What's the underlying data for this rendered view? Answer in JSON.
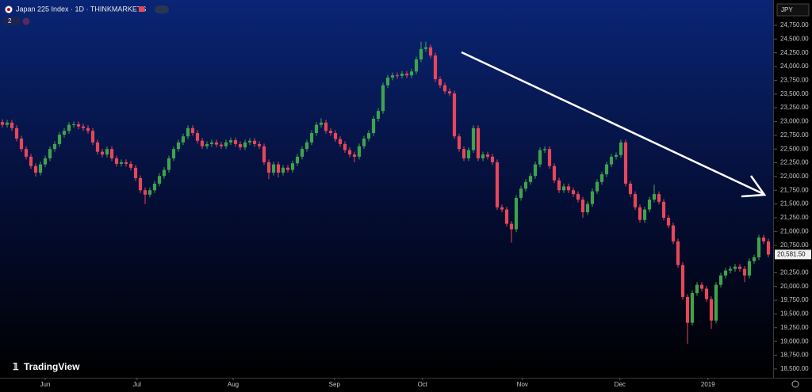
{
  "chart_data": {
    "type": "candlestick",
    "title": "Japan 225 Index · 1D · THINKMARKETS",
    "badge": "2",
    "currency": "JPY",
    "watermark": "TradingView",
    "last_price_label": "20,581.50",
    "up_color": "#3fa34d",
    "down_color": "#e6475a",
    "xlim": [
      -0.5,
      162
    ],
    "xticks": [
      {
        "value": 9,
        "label": "Jun"
      },
      {
        "value": 28.3,
        "label": "Jul"
      },
      {
        "value": 48.5,
        "label": "Aug"
      },
      {
        "value": 69.8,
        "label": "Sep"
      },
      {
        "value": 88.3,
        "label": "Oct"
      },
      {
        "value": 109.3,
        "label": "Nov"
      },
      {
        "value": 129.8,
        "label": "Dec"
      },
      {
        "value": 148.3,
        "label": "2019"
      }
    ],
    "ylim": [
      18340,
      25210
    ],
    "yticks": [
      {
        "value": 24750,
        "label": "24,750.00"
      },
      {
        "value": 24500,
        "label": "24,500.00"
      },
      {
        "value": 24250,
        "label": "24,250.00"
      },
      {
        "value": 24000,
        "label": "24,000.00"
      },
      {
        "value": 23750,
        "label": "23,750.00"
      },
      {
        "value": 23500,
        "label": "23,500.00"
      },
      {
        "value": 23250,
        "label": "23,250.00"
      },
      {
        "value": 23000,
        "label": "23,000.00"
      },
      {
        "value": 22750,
        "label": "22,750.00"
      },
      {
        "value": 22500,
        "label": "22,500.00"
      },
      {
        "value": 22250,
        "label": "22,250.00"
      },
      {
        "value": 22000,
        "label": "22,000.00"
      },
      {
        "value": 21750,
        "label": "21,750.00"
      },
      {
        "value": 21500,
        "label": "21,500.00"
      },
      {
        "value": 21250,
        "label": "21,250.00"
      },
      {
        "value": 21000,
        "label": "21,000.00"
      },
      {
        "value": 20750,
        "label": "20,750.00"
      },
      {
        "value": 20250,
        "label": "20,250.00"
      },
      {
        "value": 20000,
        "label": "20,000.00"
      },
      {
        "value": 19750,
        "label": "19,750.00"
      },
      {
        "value": 19500,
        "label": "19,500.00"
      },
      {
        "value": 19250,
        "label": "19,250.00"
      },
      {
        "value": 19000,
        "label": "19,000.00"
      },
      {
        "value": 18750,
        "label": "18,750.00"
      },
      {
        "value": 18500,
        "label": "18,500.00"
      }
    ],
    "open": [
      22990,
      22940,
      22980,
      22880,
      22690,
      22500,
      22360,
      22190,
      22070,
      22220,
      22330,
      22500,
      22590,
      22760,
      22830,
      22940,
      22950,
      22910,
      22880,
      22830,
      22620,
      22450,
      22400,
      22500,
      22330,
      22230,
      22260,
      22230,
      22160,
      21970,
      21750,
      21670,
      21750,
      21870,
      22010,
      22120,
      22330,
      22500,
      22620,
      22730,
      22880,
      22790,
      22650,
      22550,
      22590,
      22620,
      22580,
      22550,
      22620,
      22660,
      22590,
      22530,
      22620,
      22650,
      22590,
      22550,
      22260,
      22070,
      22220,
      22070,
      22160,
      22120,
      22240,
      22360,
      22500,
      22620,
      22790,
      22940,
      22980,
      22830,
      22790,
      22680,
      22590,
      22480,
      22400,
      22360,
      22550,
      22690,
      22790,
      23050,
      23190,
      23660,
      23800,
      23840,
      23830,
      23870,
      23840,
      23910,
      24130,
      24320,
      24350,
      24200,
      23770,
      23660,
      23550,
      23510,
      22730,
      22500,
      22330,
      22480,
      22880,
      22330,
      22400,
      22360,
      22260,
      21440,
      21400,
      21140,
      21040,
      21610,
      21780,
      21900,
      22010,
      22220,
      22480,
      22500,
      22190,
      21930,
      21750,
      21820,
      21750,
      21680,
      21580,
      21350,
      21500,
      21730,
      21900,
      22040,
      22220,
      22360,
      22390,
      22620,
      21870,
      21680,
      21440,
      21210,
      21400,
      21580,
      21680,
      21540,
      21250,
      21110,
      20820,
      20390,
      19810,
      19340,
      19880,
      20030,
      19960,
      19770,
      19380,
      20030,
      20200,
      20290,
      20320,
      20360,
      20320,
      20200,
      20460,
      20530,
      20890,
      20820
    ],
    "high": [
      23040,
      23030,
      23030,
      22930,
      22740,
      22550,
      22410,
      22240,
      22270,
      22380,
      22550,
      22640,
      22810,
      22880,
      22990,
      23000,
      23000,
      22960,
      22930,
      22880,
      22670,
      22500,
      22550,
      22550,
      22380,
      22310,
      22310,
      22280,
      22210,
      22020,
      21800,
      21800,
      21920,
      22060,
      22170,
      22380,
      22550,
      22670,
      22780,
      22930,
      22930,
      22840,
      22700,
      22640,
      22670,
      22670,
      22630,
      22670,
      22710,
      22710,
      22640,
      22670,
      22700,
      22700,
      22640,
      22600,
      22310,
      22270,
      22270,
      22210,
      22210,
      22290,
      22410,
      22550,
      22670,
      22840,
      22990,
      23060,
      23030,
      22880,
      22840,
      22730,
      22640,
      22530,
      22450,
      22600,
      22740,
      22840,
      23100,
      23240,
      23710,
      23850,
      23890,
      23890,
      23920,
      23920,
      23960,
      24180,
      24450,
      24450,
      24400,
      24250,
      23820,
      23710,
      23600,
      23560,
      22780,
      22550,
      22530,
      22930,
      22930,
      22450,
      22450,
      22410,
      22310,
      21490,
      21450,
      21190,
      21660,
      21830,
      21950,
      22060,
      22270,
      22530,
      22550,
      22550,
      22240,
      21980,
      21870,
      21870,
      21800,
      21730,
      21630,
      21550,
      21780,
      21950,
      22090,
      22270,
      22410,
      22440,
      22670,
      22670,
      21920,
      21730,
      21490,
      21450,
      21630,
      21850,
      21730,
      21590,
      21300,
      21160,
      20870,
      20440,
      19860,
      19930,
      20080,
      20080,
      20010,
      19820,
      20080,
      20250,
      20340,
      20370,
      20410,
      20410,
      20370,
      20510,
      20580,
      20940,
      20940,
      20870
    ],
    "low": [
      22890,
      22890,
      22830,
      22640,
      22450,
      22310,
      22140,
      22000,
      22020,
      22170,
      22280,
      22450,
      22540,
      22710,
      22780,
      22890,
      22860,
      22830,
      22780,
      22570,
      22400,
      22350,
      22350,
      22280,
      22180,
      22180,
      22180,
      22110,
      21920,
      21700,
      21500,
      21620,
      21700,
      21820,
      21960,
      22070,
      22280,
      22450,
      22570,
      22680,
      22740,
      22600,
      22500,
      22500,
      22540,
      22530,
      22500,
      22500,
      22570,
      22540,
      22480,
      22480,
      22570,
      22540,
      22500,
      22210,
      21950,
      22020,
      21980,
      22020,
      22070,
      22070,
      22190,
      22310,
      22450,
      22570,
      22740,
      22890,
      22780,
      22740,
      22630,
      22540,
      22430,
      22350,
      22260,
      22310,
      22500,
      22640,
      22740,
      23000,
      23140,
      23610,
      23750,
      23780,
      23780,
      23790,
      23790,
      23860,
      24080,
      24270,
      24150,
      23720,
      23610,
      23500,
      23460,
      22680,
      22450,
      22280,
      22280,
      22430,
      22280,
      22280,
      22310,
      22210,
      21390,
      21350,
      21090,
      20800,
      20990,
      21560,
      21730,
      21850,
      21960,
      22170,
      22430,
      22140,
      21880,
      21700,
      21700,
      21700,
      21630,
      21530,
      21250,
      21300,
      21450,
      21680,
      21850,
      21990,
      22170,
      22310,
      22340,
      21820,
      21630,
      21390,
      21160,
      21160,
      21350,
      21530,
      21490,
      21200,
      21060,
      20770,
      20340,
      19760,
      18960,
      19290,
      19830,
      19910,
      19720,
      19230,
      19330,
      19980,
      20150,
      20240,
      20270,
      20270,
      20080,
      20150,
      20410,
      20480,
      20770,
      20530
    ],
    "close": [
      22940,
      22980,
      22880,
      22690,
      22500,
      22360,
      22190,
      22070,
      22220,
      22330,
      22500,
      22590,
      22760,
      22830,
      22940,
      22950,
      22910,
      22880,
      22830,
      22620,
      22450,
      22400,
      22500,
      22330,
      22230,
      22260,
      22230,
      22160,
      21970,
      21750,
      21670,
      21750,
      21870,
      22010,
      22120,
      22330,
      22500,
      22620,
      22730,
      22880,
      22790,
      22650,
      22550,
      22590,
      22620,
      22580,
      22550,
      22620,
      22660,
      22590,
      22530,
      22620,
      22650,
      22590,
      22550,
      22260,
      22070,
      22220,
      22070,
      22160,
      22120,
      22240,
      22360,
      22500,
      22620,
      22790,
      22940,
      22980,
      22830,
      22790,
      22680,
      22590,
      22480,
      22400,
      22360,
      22550,
      22690,
      22790,
      23050,
      23190,
      23660,
      23800,
      23840,
      23830,
      23870,
      23840,
      23910,
      24130,
      24320,
      24350,
      24200,
      23770,
      23660,
      23550,
      23510,
      22730,
      22500,
      22330,
      22480,
      22880,
      22330,
      22400,
      22360,
      22260,
      21440,
      21400,
      21140,
      21040,
      21610,
      21780,
      21900,
      22010,
      22220,
      22480,
      22500,
      22190,
      21930,
      21750,
      21820,
      21750,
      21680,
      21580,
      21350,
      21500,
      21730,
      21900,
      22040,
      22220,
      22360,
      22390,
      22620,
      21870,
      21680,
      21440,
      21210,
      21400,
      21580,
      21680,
      21540,
      21250,
      21110,
      20820,
      20390,
      19810,
      19340,
      19880,
      20030,
      19960,
      19770,
      19380,
      20030,
      20200,
      20290,
      20320,
      20360,
      20320,
      20200,
      20460,
      20530,
      20890,
      20820,
      20581.5
    ]
  }
}
